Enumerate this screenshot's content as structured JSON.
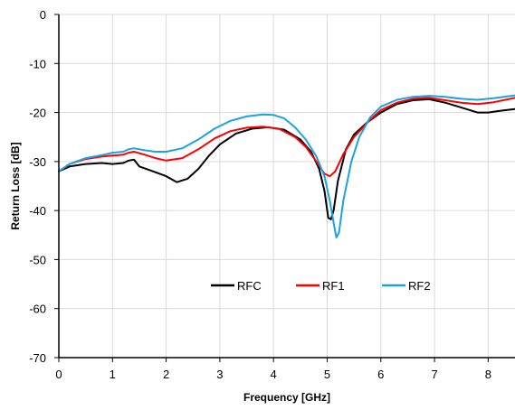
{
  "chart_data": {
    "type": "line",
    "title": "",
    "xlabel": "Frequency [GHz]",
    "ylabel": "Return Loss [dB]",
    "xlim": [
      0,
      8.5
    ],
    "ylim": [
      -70,
      0
    ],
    "xticks": [
      0,
      1,
      2,
      3,
      4,
      5,
      6,
      7,
      8
    ],
    "yticks": [
      0,
      -10,
      -20,
      -30,
      -40,
      -50,
      -60,
      -70
    ],
    "grid": true,
    "legend_position": "inside-lower-center",
    "series": [
      {
        "name": "RFC",
        "color": "#000000",
        "x": [
          0,
          0.2,
          0.5,
          0.8,
          1.0,
          1.2,
          1.3,
          1.4,
          1.5,
          1.7,
          2.0,
          2.2,
          2.4,
          2.6,
          2.8,
          3.0,
          3.3,
          3.6,
          3.9,
          4.2,
          4.5,
          4.7,
          4.85,
          4.95,
          5.02,
          5.07,
          5.12,
          5.2,
          5.35,
          5.5,
          5.75,
          6.0,
          6.3,
          6.6,
          6.9,
          7.2,
          7.5,
          7.8,
          8.0,
          8.2,
          8.5
        ],
        "y": [
          -32,
          -31,
          -30.5,
          -30.3,
          -30.5,
          -30.3,
          -29.8,
          -29.6,
          -31,
          -31.8,
          -33,
          -34.2,
          -33.5,
          -31.5,
          -28.8,
          -26.5,
          -24.3,
          -23.3,
          -23,
          -23.5,
          -25.5,
          -28,
          -31.5,
          -36,
          -41.5,
          -41.8,
          -40,
          -34,
          -27.5,
          -24.5,
          -22,
          -20,
          -18.3,
          -17.5,
          -17.3,
          -18,
          -19,
          -20,
          -20,
          -19.7,
          -19.3
        ]
      },
      {
        "name": "RF1",
        "color": "#ff0000",
        "x": [
          0,
          0.2,
          0.5,
          0.8,
          1.0,
          1.2,
          1.3,
          1.4,
          1.6,
          1.8,
          2.0,
          2.3,
          2.6,
          2.9,
          3.2,
          3.5,
          3.8,
          4.1,
          4.4,
          4.6,
          4.8,
          4.95,
          5.05,
          5.15,
          5.3,
          5.5,
          5.8,
          6.0,
          6.3,
          6.6,
          6.9,
          7.2,
          7.5,
          7.8,
          8.1,
          8.5
        ],
        "y": [
          -32,
          -30.5,
          -29.5,
          -29,
          -28.8,
          -28.6,
          -28.2,
          -28,
          -28.6,
          -29.3,
          -29.8,
          -29.3,
          -27.5,
          -25.3,
          -23.8,
          -23.1,
          -22.9,
          -23.3,
          -25,
          -27,
          -30,
          -32.5,
          -33,
          -32,
          -28.5,
          -25,
          -21.5,
          -19.5,
          -18,
          -17.2,
          -17,
          -17.5,
          -18,
          -18.3,
          -17.9,
          -17
        ]
      },
      {
        "name": "RF2",
        "color": "#1aa3e0",
        "x": [
          0,
          0.2,
          0.5,
          0.8,
          1.0,
          1.2,
          1.3,
          1.4,
          1.6,
          1.8,
          2.0,
          2.3,
          2.6,
          2.9,
          3.2,
          3.5,
          3.8,
          4.0,
          4.2,
          4.4,
          4.6,
          4.8,
          4.95,
          5.05,
          5.12,
          5.17,
          5.22,
          5.3,
          5.45,
          5.6,
          5.8,
          6.0,
          6.3,
          6.6,
          6.9,
          7.2,
          7.5,
          7.8,
          8.1,
          8.5
        ],
        "y": [
          -32,
          -30.5,
          -29.3,
          -28.7,
          -28.2,
          -28,
          -27.5,
          -27.3,
          -27.7,
          -28,
          -28,
          -27.3,
          -25.5,
          -23.3,
          -21.7,
          -20.8,
          -20.4,
          -20.5,
          -21.2,
          -23,
          -25.5,
          -29,
          -33,
          -38,
          -42.5,
          -45.5,
          -44.5,
          -38,
          -30,
          -25,
          -21,
          -18.8,
          -17.4,
          -16.8,
          -16.6,
          -16.8,
          -17.2,
          -17.4,
          -17.1,
          -16.5
        ]
      }
    ]
  }
}
